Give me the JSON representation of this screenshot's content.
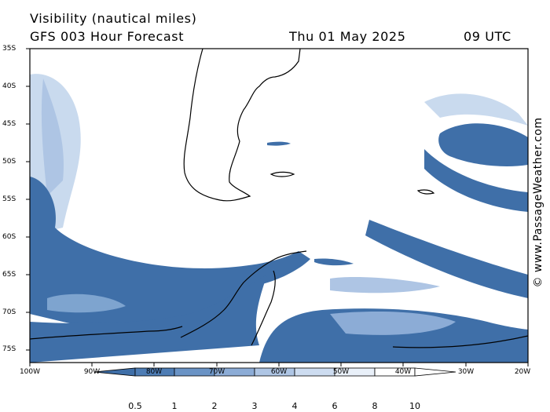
{
  "header": {
    "title": "Visibility (nautical miles)",
    "product": "GFS 003 Hour Forecast",
    "date": "Thu 01 May 2025",
    "time": "09 UTC"
  },
  "copyright": "© www.PassageWeather.com",
  "map": {
    "lat_labels": [
      "35S",
      "40S",
      "45S",
      "50S",
      "55S",
      "60S",
      "65S",
      "70S",
      "75S"
    ],
    "lon_labels": [
      "100W",
      "90W",
      "80W",
      "70W",
      "60W",
      "50W",
      "40W",
      "30W",
      "20W"
    ],
    "colors": {
      "land_outline": "#000000",
      "ocean_low_vis": "#3f6fa8",
      "moderate_vis": "#7ea4cf",
      "good_vis": "#c9daee",
      "clear": "#ffffff"
    }
  },
  "colorbar": {
    "ticks": [
      "0.5",
      "1",
      "2",
      "3",
      "4",
      "6",
      "8",
      "10"
    ],
    "colors": [
      "#3f6fa8",
      "#4e7db5",
      "#6a93c5",
      "#8cacd6",
      "#aec5e4",
      "#cddcf0",
      "#e9f0f9",
      "#ffffff"
    ]
  }
}
